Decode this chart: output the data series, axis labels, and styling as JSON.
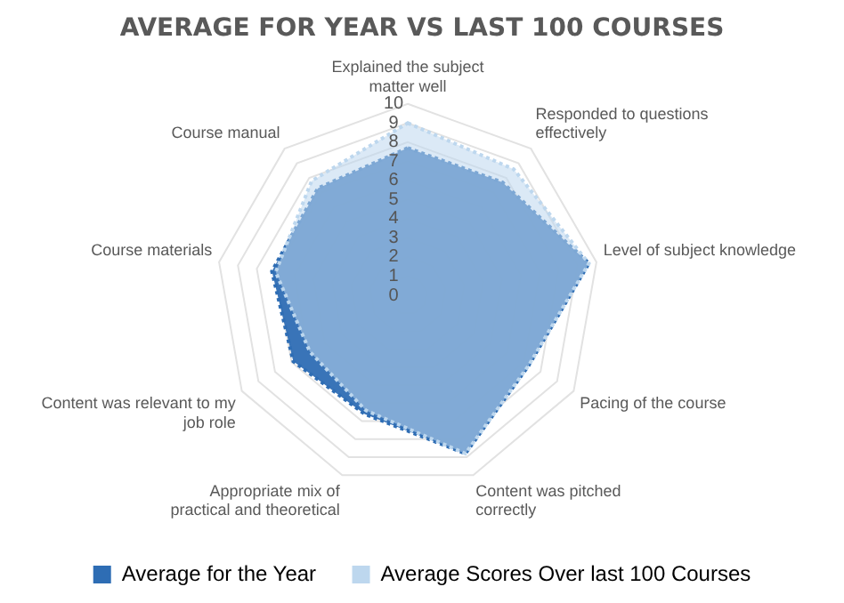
{
  "chart_data": {
    "type": "radar",
    "title": "AVERAGE FOR YEAR VS LAST 100 COURSES",
    "categories": [
      "Explained the subject matter well",
      "Responded to questions effectively",
      "Level of subject knowledge",
      "Pacing of the course",
      "Content was pitched correctly",
      "Appropriate mix of practical and theoretical",
      "Content was relevant to my job role",
      "Course materials",
      "Course manual"
    ],
    "series": [
      {
        "name": "Average for the Year",
        "color": "#2e6db4",
        "values": [
          7.7,
          7.7,
          9.6,
          7.3,
          8.8,
          6.6,
          6.9,
          7.2,
          7.3
        ]
      },
      {
        "name": "Average Scores Over last 100 Courses",
        "color": "#bdd7ee",
        "values": [
          9.0,
          8.6,
          9.6,
          7.3,
          8.8,
          6.4,
          5.9,
          7.0,
          7.8
        ]
      }
    ],
    "ylim": [
      0,
      10
    ],
    "yticks": [
      0,
      1,
      2,
      3,
      4,
      5,
      6,
      7,
      8,
      9,
      10
    ],
    "grid": true,
    "legend": "bottom",
    "line_style": "dotted"
  }
}
